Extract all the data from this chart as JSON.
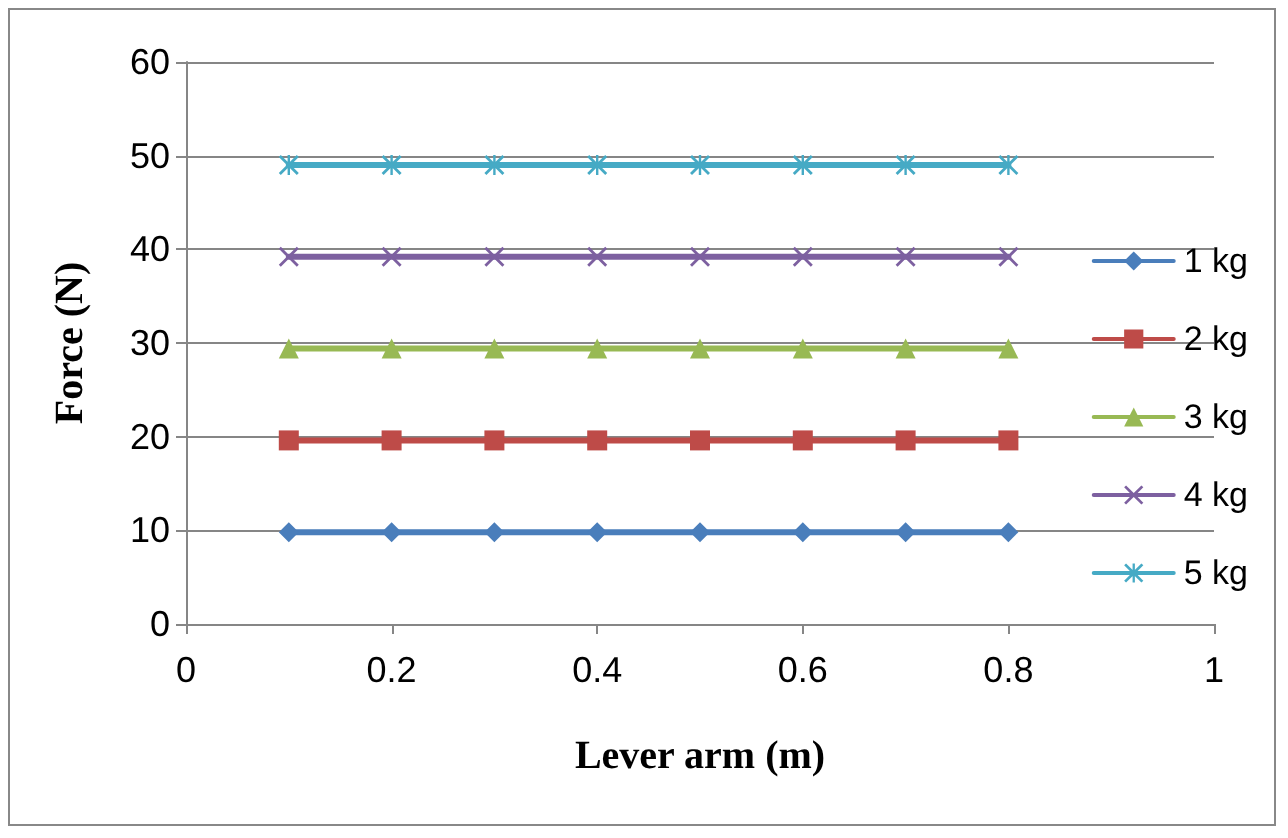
{
  "chart_data": {
    "type": "line",
    "xlabel": "Lever arm (m)",
    "ylabel": "Force (N)",
    "x": [
      0.1,
      0.2,
      0.3,
      0.4,
      0.5,
      0.6,
      0.7,
      0.8
    ],
    "series": [
      {
        "name": "1 kg",
        "color": "#4a7ebb",
        "marker": "diamond",
        "values": [
          9.8,
          9.8,
          9.8,
          9.8,
          9.8,
          9.8,
          9.8,
          9.8
        ]
      },
      {
        "name": "2 kg",
        "color": "#be4b48",
        "marker": "square",
        "values": [
          19.6,
          19.6,
          19.6,
          19.6,
          19.6,
          19.6,
          19.6,
          19.6
        ]
      },
      {
        "name": "3 kg",
        "color": "#98b954",
        "marker": "triangle",
        "values": [
          29.4,
          29.4,
          29.4,
          29.4,
          29.4,
          29.4,
          29.4,
          29.4
        ]
      },
      {
        "name": "4 kg",
        "color": "#7d60a0",
        "marker": "cross",
        "values": [
          39.2,
          39.2,
          39.2,
          39.2,
          39.2,
          39.2,
          39.2,
          39.2
        ]
      },
      {
        "name": "5 kg",
        "color": "#46aac5",
        "marker": "star",
        "values": [
          49,
          49,
          49,
          49,
          49,
          49,
          49,
          49
        ]
      }
    ],
    "xlim": [
      0,
      1
    ],
    "xticks": [
      0,
      0.2,
      0.4,
      0.6,
      0.8,
      1
    ],
    "ylim": [
      0,
      60
    ],
    "yticks": [
      0,
      10,
      20,
      30,
      40,
      50,
      60
    ],
    "grid": "y",
    "legend": "right",
    "line_style": "solid"
  }
}
